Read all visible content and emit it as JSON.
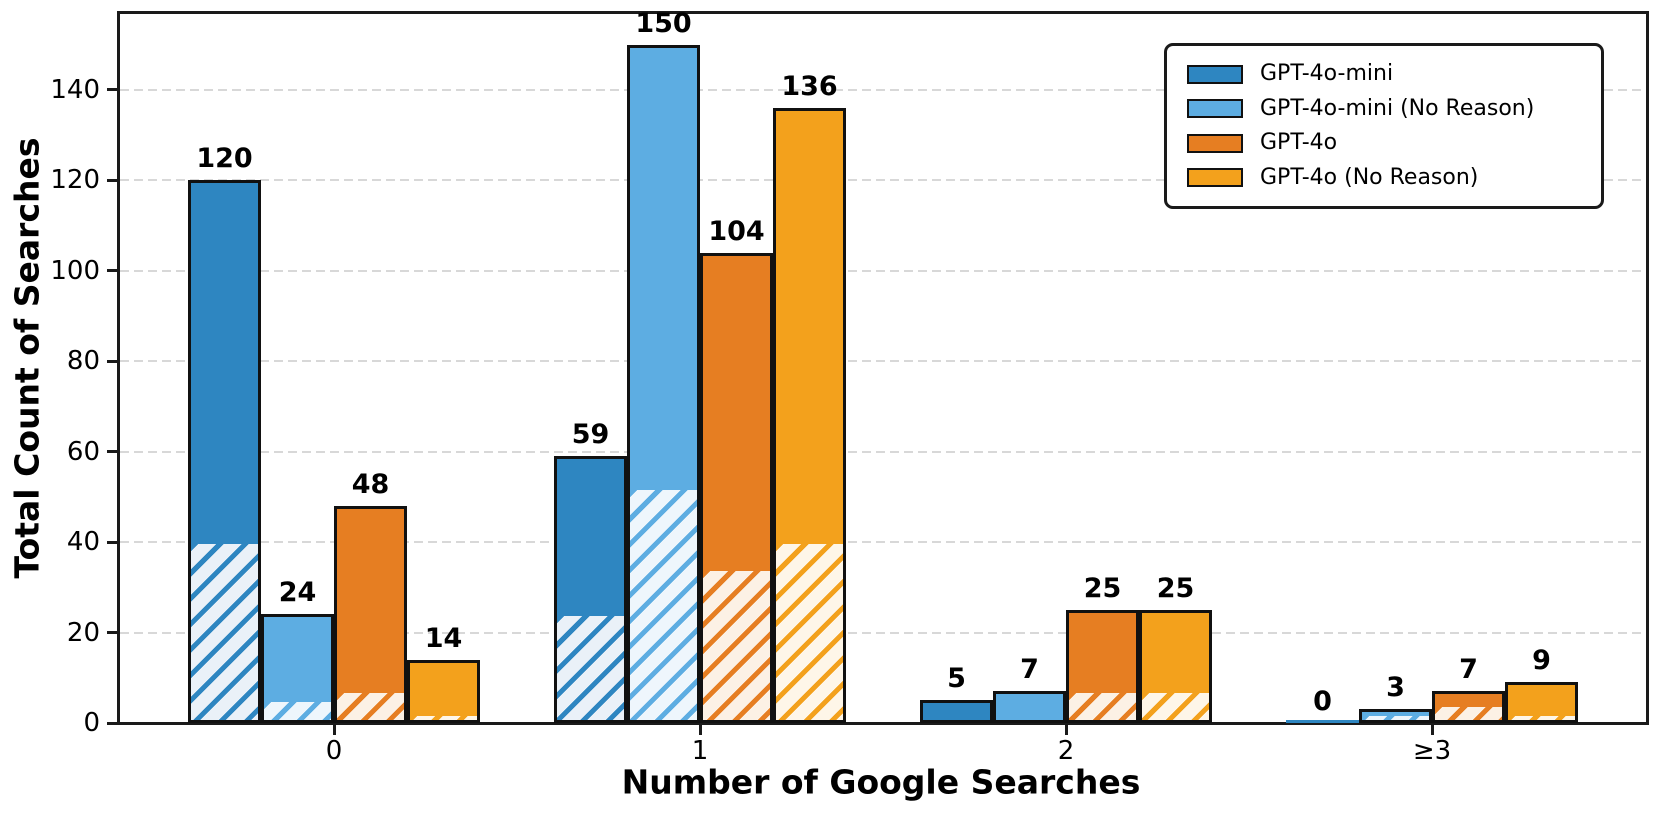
{
  "chart_data": {
    "type": "bar",
    "title": "",
    "xlabel": "Number of Google Searches",
    "ylabel": "Total Count of Searches",
    "categories": [
      "0",
      "1",
      "2",
      "≥3"
    ],
    "series": [
      {
        "name": "GPT-4o-mini",
        "color": "#2E86C1",
        "hatch_bg": "#EAF1F8",
        "values": [
          120,
          59,
          5,
          0
        ],
        "hatched_values": [
          40,
          24,
          1,
          0
        ]
      },
      {
        "name": "GPT-4o-mini (No Reason)",
        "color": "#5DADE2",
        "hatch_bg": "#EEF6FC",
        "values": [
          24,
          150,
          7,
          3
        ],
        "hatched_values": [
          5,
          52,
          1,
          2
        ]
      },
      {
        "name": "GPT-4o",
        "color": "#E67E22",
        "hatch_bg": "#FCF1E5",
        "values": [
          48,
          104,
          25,
          7
        ],
        "hatched_values": [
          7,
          34,
          7,
          4
        ]
      },
      {
        "name": "GPT-4o (No Reason)",
        "color": "#F3A11C",
        "hatch_bg": "#FEF6E8",
        "values": [
          14,
          136,
          25,
          9
        ],
        "hatched_values": [
          2,
          40,
          7,
          2
        ]
      }
    ],
    "bar_value_labels": [
      [
        120,
        59,
        5,
        0
      ],
      [
        24,
        150,
        7,
        3
      ],
      [
        48,
        104,
        25,
        7
      ],
      [
        14,
        136,
        25,
        9
      ]
    ],
    "yticks": [
      0,
      20,
      40,
      60,
      80,
      100,
      120,
      140
    ],
    "ylim": [
      0,
      157
    ],
    "grid": {
      "axis": "y",
      "style": "dashed",
      "color": "#d8d8d8"
    },
    "hatch_pattern": "diagonal-forward-slash",
    "legend": {
      "position": "upper right",
      "entries": [
        "GPT-4o-mini",
        "GPT-4o-mini (No Reason)",
        "GPT-4o",
        "GPT-4o (No Reason)"
      ]
    }
  },
  "colors": {
    "axis": "#1a1a1a",
    "text": "#000000",
    "background": "#ffffff"
  }
}
